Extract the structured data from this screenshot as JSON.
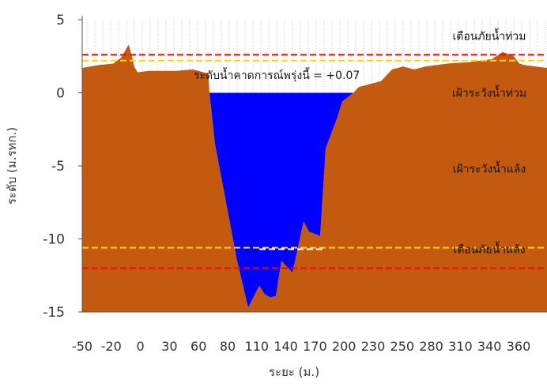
{
  "chart_data": {
    "type": "area",
    "title": "",
    "xlabel": "ระยะ (ม.)",
    "ylabel": "ระดับ (ม.รทก.)",
    "ylim": [
      -15,
      5
    ],
    "y_ticks": [
      5,
      0,
      -5,
      -10,
      -15
    ],
    "x_tick_labels": [
      "-50",
      "-20",
      "0",
      "30",
      "60",
      "80",
      "110",
      "140",
      "170",
      "200",
      "230",
      "250",
      "280",
      "310",
      "340",
      "360"
    ],
    "grid": "vertical dotted lines above ground",
    "colors": {
      "ground": "#c45a10",
      "water": "#0000ff",
      "red_line": "#ff0000",
      "yellow_line": "#ffd700",
      "white_line": "#ffffff",
      "axis": "#555555"
    },
    "annotation": "ระดับน้ำคาดการณ์พรุ่งนี้ = +0.07",
    "water_level": 0.0,
    "reference_lines": [
      {
        "name": "เตือนภัยน้ำท่วม",
        "value": 2.6,
        "color": "red"
      },
      {
        "name": "เฝ้าระวังน้ำท่วม",
        "value": 2.2,
        "color": "yellow"
      },
      {
        "name": "เฝ้าระวังน้ำแล้ง",
        "value": -10.6,
        "color": "yellow"
      },
      {
        "name": "เตือนภัยน้ำแล้ง",
        "value": -12.0,
        "color": "red"
      },
      {
        "name": "",
        "value": -10.7,
        "color": "white"
      }
    ],
    "zone_labels": [
      {
        "text": "เตือนภัยน้ำท่วม",
        "y": 3.9
      },
      {
        "text": "เฝ้าระวังน้ำท่วม",
        "y": 0.0
      },
      {
        "text": "เฝ้าระวังน้ำแล้ง",
        "y": -5.2
      },
      {
        "text": "เตือนภัยน้ำแล้ง",
        "y": -10.7
      }
    ],
    "ground_profile": {
      "x": [
        -50,
        -35,
        -22,
        -15,
        -8,
        -5,
        -3,
        0,
        10,
        20,
        35,
        50,
        60,
        64,
        65,
        70,
        80,
        90,
        100,
        110,
        115,
        120,
        125,
        130,
        140,
        150,
        155,
        165,
        170,
        180,
        185,
        195,
        200,
        210,
        220,
        225,
        230,
        240,
        250,
        260,
        280,
        300,
        310,
        320,
        330,
        340,
        345,
        350,
        360,
        370
      ],
      "y": [
        1.7,
        1.9,
        2.0,
        2.4,
        3.3,
        2.5,
        1.8,
        1.4,
        1.5,
        1.5,
        1.5,
        1.6,
        1.4,
        1.3,
        0.0,
        -3.5,
        -7.5,
        -11.5,
        -14.7,
        -13.2,
        -13.8,
        -14.0,
        -13.9,
        -11.5,
        -12.3,
        -8.8,
        -9.5,
        -9.8,
        -3.8,
        -1.8,
        -0.6,
        0.0,
        0.4,
        0.6,
        0.8,
        1.2,
        1.6,
        1.8,
        1.6,
        1.8,
        2.0,
        2.1,
        2.2,
        2.3,
        2.8,
        2.5,
        2.0,
        1.9,
        1.8,
        1.7
      ]
    }
  }
}
